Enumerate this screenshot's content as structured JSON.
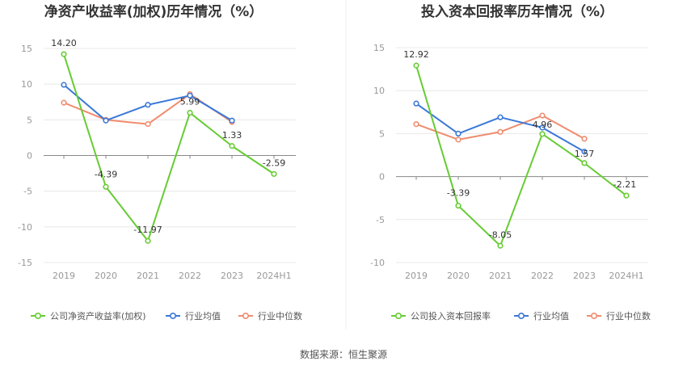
{
  "source_text": "数据来源：恒生聚源",
  "colors": {
    "company": "#66cc33",
    "average": "#3b78d8",
    "median": "#f08c6e"
  },
  "chart_data": [
    {
      "type": "line",
      "title": "净资产收益率(加权)历年情况（%）",
      "categories": [
        "2019",
        "2020",
        "2021",
        "2022",
        "2023",
        "2024H1"
      ],
      "ylim": [
        -15,
        15
      ],
      "yticks": [
        15,
        10,
        5,
        0,
        -5,
        -10,
        -15
      ],
      "grid": true,
      "legend_position": "bottom",
      "series": [
        {
          "name": "公司净资产收益率(加权)",
          "values": [
            14.2,
            -4.39,
            -11.97,
            5.99,
            1.33,
            -2.59
          ],
          "labels": [
            "14.20",
            "-4.39",
            "-11.97",
            "5.99",
            "1.33",
            "-2.59"
          ]
        },
        {
          "name": "行业均值",
          "values": [
            9.9,
            4.9,
            7.1,
            8.4,
            4.9,
            null
          ]
        },
        {
          "name": "行业中位数",
          "values": [
            7.4,
            5.0,
            4.4,
            8.6,
            4.7,
            null
          ]
        }
      ]
    },
    {
      "type": "line",
      "title": "投入资本回报率历年情况（%）",
      "categories": [
        "2019",
        "2020",
        "2021",
        "2022",
        "2023",
        "2024H1"
      ],
      "ylim": [
        -10,
        15
      ],
      "yticks": [
        15,
        10,
        5,
        0,
        -5,
        -10
      ],
      "grid": true,
      "legend_position": "bottom",
      "series": [
        {
          "name": "公司投入资本回报率",
          "values": [
            12.92,
            -3.39,
            -8.05,
            4.96,
            1.57,
            -2.21
          ],
          "labels": [
            "12.92",
            "-3.39",
            "-8.05",
            "4.96",
            "1.57",
            "-2.21"
          ]
        },
        {
          "name": "行业均值",
          "values": [
            8.5,
            5.0,
            6.9,
            5.7,
            2.9,
            null
          ]
        },
        {
          "name": "行业中位数",
          "values": [
            6.1,
            4.3,
            5.2,
            7.1,
            4.4,
            null
          ]
        }
      ]
    }
  ]
}
